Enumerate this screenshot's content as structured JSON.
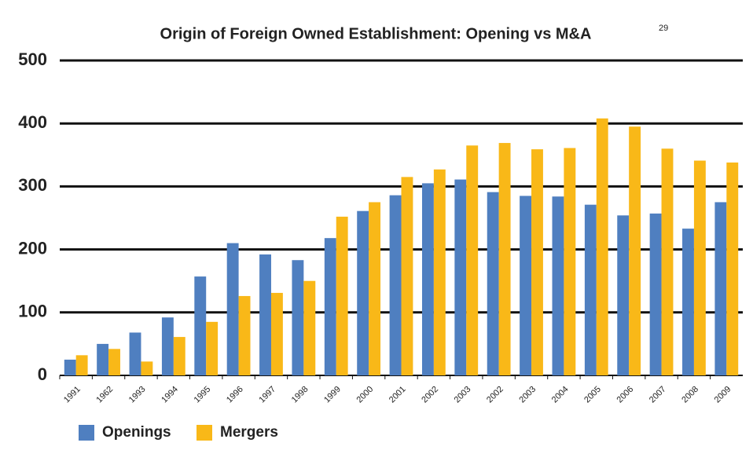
{
  "chart_data": {
    "type": "bar",
    "title": "Origin of Foreign Owned Establishment: Opening vs M&A",
    "title_note": "29",
    "categories": [
      "1991",
      "1962",
      "1993",
      "1994",
      "1995",
      "1996",
      "1997",
      "1998",
      "1999",
      "2000",
      "2001",
      "2002",
      "2003",
      "2002",
      "2003",
      "2004",
      "2005",
      "2006",
      "2007",
      "2008",
      "2009"
    ],
    "series": [
      {
        "name": "Openings",
        "color": "#4f7fc0",
        "values": [
          25,
          50,
          68,
          92,
          157,
          210,
          192,
          183,
          218,
          261,
          286,
          305,
          311,
          291,
          285,
          284,
          271,
          254,
          257,
          233,
          275
        ]
      },
      {
        "name": "Mergers",
        "color": "#f9b818",
        "values": [
          32,
          42,
          22,
          61,
          85,
          126,
          131,
          150,
          252,
          275,
          315,
          327,
          365,
          369,
          359,
          361,
          408,
          395,
          360,
          341,
          338
        ]
      }
    ],
    "ylim": [
      0,
      500
    ],
    "yticks": [
      0,
      100,
      200,
      300,
      400,
      500
    ],
    "grid": true,
    "legend": "bottom-left"
  }
}
